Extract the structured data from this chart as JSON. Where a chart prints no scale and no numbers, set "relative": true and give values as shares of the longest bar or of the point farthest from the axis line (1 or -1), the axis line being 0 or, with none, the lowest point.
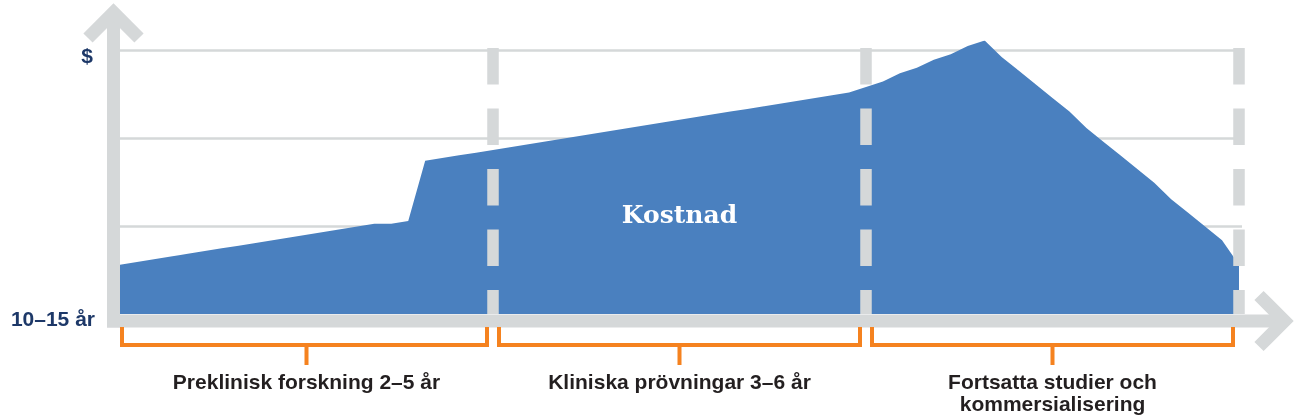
{
  "chart_data": {
    "type": "area",
    "relative": true,
    "xlabel": "10–15 år",
    "ylabel": "$",
    "categories": [
      null,
      null,
      null,
      null,
      null,
      null,
      null,
      null,
      null,
      null,
      null,
      "Preklinisk forskning 2–5 år",
      null,
      null,
      null,
      null,
      null,
      null,
      null,
      null,
      null,
      null,
      null,
      null,
      null,
      null,
      null,
      null,
      null,
      null,
      null,
      null,
      null,
      "Kliniska prövningar 3–6 år",
      null,
      null,
      null,
      null,
      null,
      null,
      null,
      null,
      null,
      null,
      null,
      null,
      null,
      null,
      null,
      null,
      null,
      null,
      null,
      null,
      null,
      "Fortsatta studier och kommersialisering",
      null,
      null,
      null,
      null,
      null,
      null,
      null,
      null,
      null,
      null,
      null
    ],
    "values": [
      0.18,
      0.19,
      0.2,
      0.21,
      0.22,
      0.23,
      0.24,
      0.25,
      0.26,
      0.27,
      0.28,
      0.29,
      0.3,
      0.31,
      0.32,
      0.33,
      0.33,
      0.34,
      0.56,
      0.57,
      0.58,
      0.59,
      0.6,
      0.61,
      0.62,
      0.63,
      0.64,
      0.65,
      0.66,
      0.67,
      0.68,
      0.69,
      0.7,
      0.71,
      0.72,
      0.73,
      0.74,
      0.75,
      0.76,
      0.77,
      0.78,
      0.79,
      0.8,
      0.81,
      0.83,
      0.85,
      0.88,
      0.9,
      0.93,
      0.95,
      0.98,
      1.0,
      0.94,
      0.89,
      0.84,
      0.79,
      0.74,
      0.68,
      0.63,
      0.58,
      0.53,
      0.48,
      0.42,
      0.37,
      0.32,
      0.27,
      0.18
    ],
    "color": "#4a80bf",
    "grid": true,
    "annotations": [
      "Kostnad"
    ]
  }
}
